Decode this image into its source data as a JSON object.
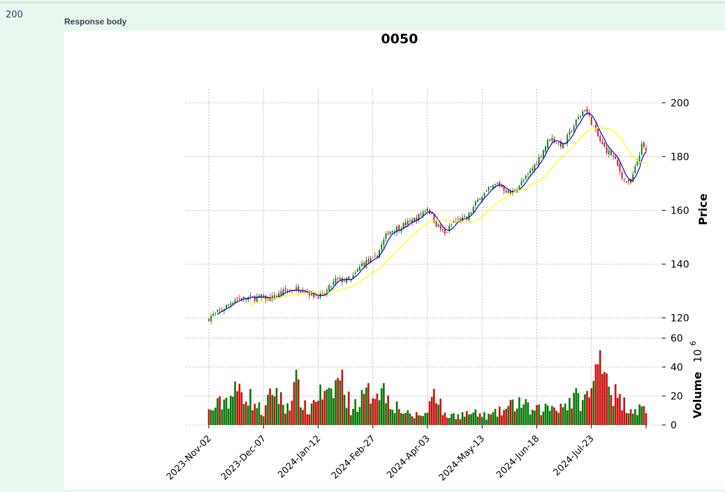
{
  "response": {
    "status_code": "200",
    "body_label": "Response body"
  },
  "chart_data": {
    "type": "candlestick",
    "title": "0050",
    "moving_averages": [
      {
        "color": "#0000cc",
        "period_note": "short"
      },
      {
        "color": "#ffff00",
        "period_note": "long"
      }
    ],
    "colors": {
      "up": "#0a7a0a",
      "down": "#cc1111",
      "grid": "#b0b0b0"
    },
    "price_axis": {
      "label": "Price",
      "ticks": [
        120,
        140,
        160,
        180,
        200
      ],
      "range": [
        117,
        205
      ]
    },
    "volume_axis": {
      "label": "Volume",
      "multiplier": "10",
      "exponent": "6",
      "ticks": [
        0,
        20,
        40,
        60
      ],
      "range": [
        0,
        66
      ]
    },
    "x_tick_labels": [
      "2023-Nov-02",
      "2023-Dec-07",
      "2024-Jan-12",
      "2024-Feb-27",
      "2024-Apr-03",
      "2024-May-13",
      "2024-Jun-18",
      "2024-Jul-23"
    ],
    "x_tick_indices": [
      0,
      25,
      50,
      75,
      100,
      125,
      150,
      175
    ],
    "total_sessions": 201,
    "price_anchors": [
      [
        0,
        120
      ],
      [
        6,
        123
      ],
      [
        12,
        127
      ],
      [
        22,
        127.5
      ],
      [
        28,
        127
      ],
      [
        35,
        130
      ],
      [
        42,
        131
      ],
      [
        48,
        128.5
      ],
      [
        52,
        128
      ],
      [
        58,
        134
      ],
      [
        65,
        134
      ],
      [
        70,
        140
      ],
      [
        76,
        142
      ],
      [
        82,
        152
      ],
      [
        88,
        154
      ],
      [
        95,
        157
      ],
      [
        100,
        161
      ],
      [
        104,
        155
      ],
      [
        108,
        151
      ],
      [
        112,
        156
      ],
      [
        118,
        157
      ],
      [
        124,
        165
      ],
      [
        132,
        170
      ],
      [
        138,
        166
      ],
      [
        145,
        172
      ],
      [
        150,
        178
      ],
      [
        156,
        187
      ],
      [
        162,
        184
      ],
      [
        168,
        193
      ],
      [
        172,
        198
      ],
      [
        176,
        191
      ],
      [
        180,
        184
      ],
      [
        185,
        180
      ],
      [
        190,
        171
      ],
      [
        193,
        170
      ],
      [
        198,
        184
      ],
      [
        200,
        182
      ]
    ],
    "volume_anchors": [
      [
        0,
        9
      ],
      [
        10,
        20
      ],
      [
        15,
        25
      ],
      [
        25,
        8
      ],
      [
        30,
        26
      ],
      [
        35,
        11
      ],
      [
        40,
        27
      ],
      [
        45,
        8
      ],
      [
        50,
        22
      ],
      [
        55,
        18
      ],
      [
        60,
        34
      ],
      [
        65,
        12
      ],
      [
        72,
        20
      ],
      [
        78,
        27
      ],
      [
        85,
        14
      ],
      [
        92,
        6
      ],
      [
        100,
        8
      ],
      [
        103,
        28
      ],
      [
        108,
        6
      ],
      [
        120,
        8
      ],
      [
        128,
        6
      ],
      [
        135,
        10
      ],
      [
        142,
        16
      ],
      [
        148,
        9
      ],
      [
        155,
        12
      ],
      [
        162,
        14
      ],
      [
        168,
        18
      ],
      [
        172,
        17
      ],
      [
        176,
        26
      ],
      [
        180,
        60
      ],
      [
        183,
        28
      ],
      [
        188,
        16
      ],
      [
        195,
        11
      ],
      [
        200,
        11
      ]
    ]
  }
}
